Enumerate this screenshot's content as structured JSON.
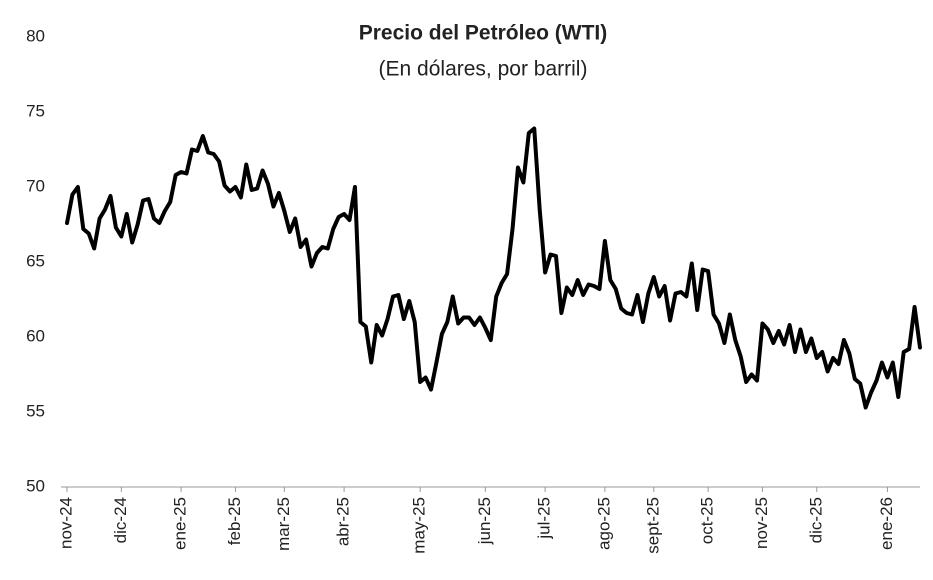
{
  "chart_data": {
    "type": "line",
    "title": "Precio del Petróleo (WTI)",
    "subtitle": "(En dólares, por barril)",
    "categories": [
      "nov-24",
      null,
      null,
      null,
      null,
      null,
      null,
      null,
      null,
      null,
      "dic-24",
      null,
      null,
      null,
      null,
      null,
      null,
      null,
      null,
      null,
      null,
      "ene-25",
      null,
      null,
      null,
      null,
      null,
      null,
      null,
      null,
      null,
      "feb-25",
      null,
      null,
      null,
      null,
      null,
      null,
      null,
      null,
      "mar-25",
      null,
      null,
      null,
      null,
      null,
      null,
      null,
      null,
      null,
      null,
      "abr-25",
      null,
      null,
      null,
      null,
      null,
      null,
      null,
      null,
      null,
      null,
      null,
      null,
      null,
      "may-25",
      null,
      null,
      null,
      null,
      null,
      null,
      null,
      null,
      null,
      null,
      null,
      "jun-25",
      null,
      null,
      null,
      null,
      null,
      null,
      null,
      null,
      null,
      null,
      "jul-25",
      null,
      null,
      null,
      null,
      null,
      null,
      null,
      null,
      null,
      null,
      "ago-25",
      null,
      null,
      null,
      null,
      null,
      null,
      null,
      null,
      "sept-25",
      null,
      null,
      null,
      null,
      null,
      null,
      null,
      null,
      null,
      "oct-25",
      null,
      null,
      null,
      null,
      null,
      null,
      null,
      null,
      null,
      "nov-25",
      null,
      null,
      null,
      null,
      null,
      null,
      null,
      null,
      null,
      "dic-25",
      null,
      null,
      null,
      null,
      null,
      null,
      null,
      null,
      null,
      null,
      null,
      null,
      "ene-26",
      null,
      null,
      null,
      null,
      null,
      null
    ],
    "values": [
      67.6,
      69.5,
      70.0,
      67.2,
      66.9,
      65.9,
      67.9,
      68.5,
      69.4,
      67.3,
      66.7,
      68.2,
      66.3,
      67.5,
      69.1,
      69.2,
      67.9,
      67.6,
      68.4,
      69.0,
      70.8,
      71.0,
      70.9,
      72.5,
      72.4,
      73.4,
      72.3,
      72.2,
      71.7,
      70.1,
      69.7,
      70.0,
      69.3,
      71.5,
      69.8,
      69.9,
      71.1,
      70.2,
      68.7,
      69.6,
      68.4,
      67.0,
      67.9,
      66.0,
      66.5,
      64.7,
      65.6,
      66.0,
      65.9,
      67.2,
      68.0,
      68.2,
      67.8,
      70.0,
      61.0,
      60.7,
      58.3,
      60.8,
      60.1,
      61.2,
      62.7,
      62.8,
      61.2,
      62.4,
      61.0,
      57.0,
      57.3,
      56.5,
      58.3,
      60.2,
      61.0,
      62.7,
      60.9,
      61.3,
      61.3,
      60.8,
      61.3,
      60.6,
      59.8,
      62.7,
      63.6,
      64.2,
      67.2,
      71.3,
      70.3,
      73.6,
      73.9,
      68.5,
      64.3,
      65.5,
      65.4,
      61.6,
      63.3,
      62.8,
      63.8,
      62.8,
      63.5,
      63.4,
      63.2,
      66.4,
      63.8,
      63.2,
      61.9,
      61.6,
      61.5,
      62.8,
      61.0,
      62.9,
      64.0,
      62.7,
      63.4,
      61.1,
      62.9,
      63.0,
      62.7,
      64.9,
      61.8,
      64.5,
      64.4,
      61.5,
      60.9,
      59.6,
      61.5,
      59.8,
      58.7,
      57.0,
      57.5,
      57.1,
      60.9,
      60.5,
      59.6,
      60.4,
      59.5,
      60.8,
      59.0,
      60.5,
      59.0,
      59.9,
      58.6,
      59.0,
      57.7,
      58.6,
      58.2,
      59.8,
      58.9,
      57.2,
      56.9,
      55.3,
      56.3,
      57.1,
      58.3,
      57.3,
      58.3,
      56.0,
      59.0,
      59.2,
      62.0,
      59.3
    ],
    "color": "#000000",
    "ylim": [
      50,
      80
    ],
    "yticks": [
      50,
      55,
      60,
      65,
      70,
      75,
      80
    ],
    "grid": false
  }
}
